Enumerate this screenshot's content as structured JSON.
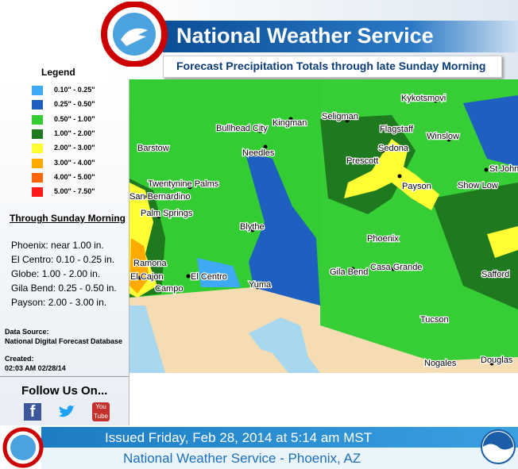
{
  "header": {
    "title": "National Weather Service",
    "subtitle": "Forecast Precipitation Totals through late Sunday Morning"
  },
  "legend": {
    "title": "Legend",
    "items": [
      {
        "label": "0.10\" - 0.25\"",
        "color": "#3fa9f5"
      },
      {
        "label": "0.25\" - 0.50\"",
        "color": "#1f5fbf"
      },
      {
        "label": "0.50\" - 1.00\"",
        "color": "#33cc33"
      },
      {
        "label": "1.00\" - 2.00\"",
        "color": "#1f7a1f"
      },
      {
        "label": "2.00\" - 3.00\"",
        "color": "#ffff33"
      },
      {
        "label": "3.00\" - 4.00\"",
        "color": "#ffaa00"
      },
      {
        "label": "4.00\" - 5.00\"",
        "color": "#ff6600"
      },
      {
        "label": "5.00\" - 7.50\"",
        "color": "#ff1a1a"
      }
    ]
  },
  "summary": {
    "title": "Through Sunday Morning",
    "items": [
      "Phoenix: near 1.00 in.",
      "El Centro: 0.10 - 0.25 in.",
      "Globe: 1.00 - 2.00 in.",
      "Gila Bend: 0.25 - 0.50 in.",
      "Payson: 2.00 - 3.00 in."
    ]
  },
  "source": {
    "label": "Data Source:",
    "value": "National Digital Forecast Database"
  },
  "created": {
    "label": "Created:",
    "value": "02:03 AM 02/28/14"
  },
  "social": {
    "title": "Follow Us On...",
    "youtube": "You Tube"
  },
  "map": {
    "cities": [
      "Kykotsmovi",
      "Seligman",
      "Kingman",
      "Bullhead City",
      "Flagstaff",
      "Winslow",
      "Barstow",
      "Needles",
      "Sedona",
      "Prescott",
      "St Johns",
      "Twentynine Palms",
      "Payson",
      "Show Low",
      "San Bernardino",
      "Palm Springs",
      "Blythe",
      "Phoenix",
      "Safford",
      "Casa Grande",
      "Gila Bend",
      "Ramona",
      "El Cajon",
      "El Centro",
      "Campo",
      "Yuma",
      "Tucson",
      "Nogales",
      "Douglas"
    ]
  },
  "footer": {
    "issued": "Issued Friday, Feb 28, 2014 at 5:14 am MST",
    "office": "National Weather Service - Phoenix, AZ"
  }
}
